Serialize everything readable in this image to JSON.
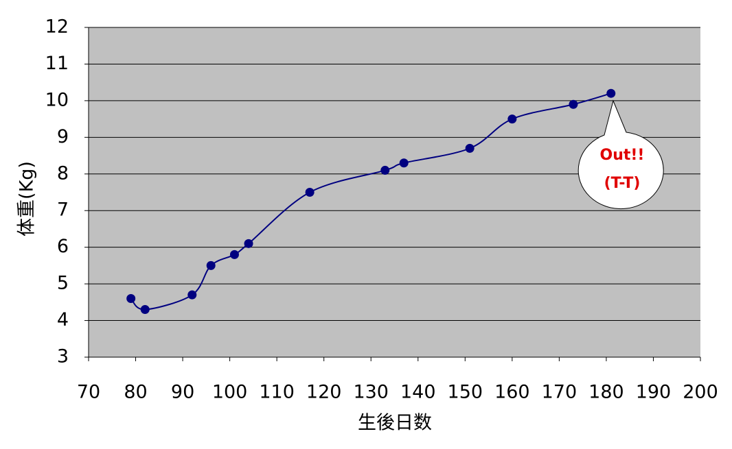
{
  "chart_data": {
    "type": "line",
    "x_label": "生後日数",
    "y_label": "体重(Kg)",
    "annotations": [
      "Out!!",
      "(T-T)"
    ],
    "series": [
      {
        "color": "#000080",
        "x": [
          79,
          82,
          92,
          96,
          101,
          104,
          117,
          133,
          137,
          151,
          160,
          173,
          181
        ],
        "values": [
          4.6,
          4.3,
          4.7,
          5.5,
          5.8,
          6.1,
          7.5,
          8.1,
          8.3,
          8.7,
          9.5,
          9.9,
          10.2
        ]
      }
    ],
    "xlim": [
      70,
      200
    ],
    "xticks": [
      70,
      80,
      90,
      100,
      110,
      120,
      130,
      140,
      150,
      160,
      170,
      180,
      190,
      200
    ],
    "ylim": [
      3,
      12
    ],
    "yticks": [
      3,
      4,
      5,
      6,
      7,
      8,
      9,
      10,
      11,
      12
    ],
    "grid": true,
    "smooth": true
  }
}
